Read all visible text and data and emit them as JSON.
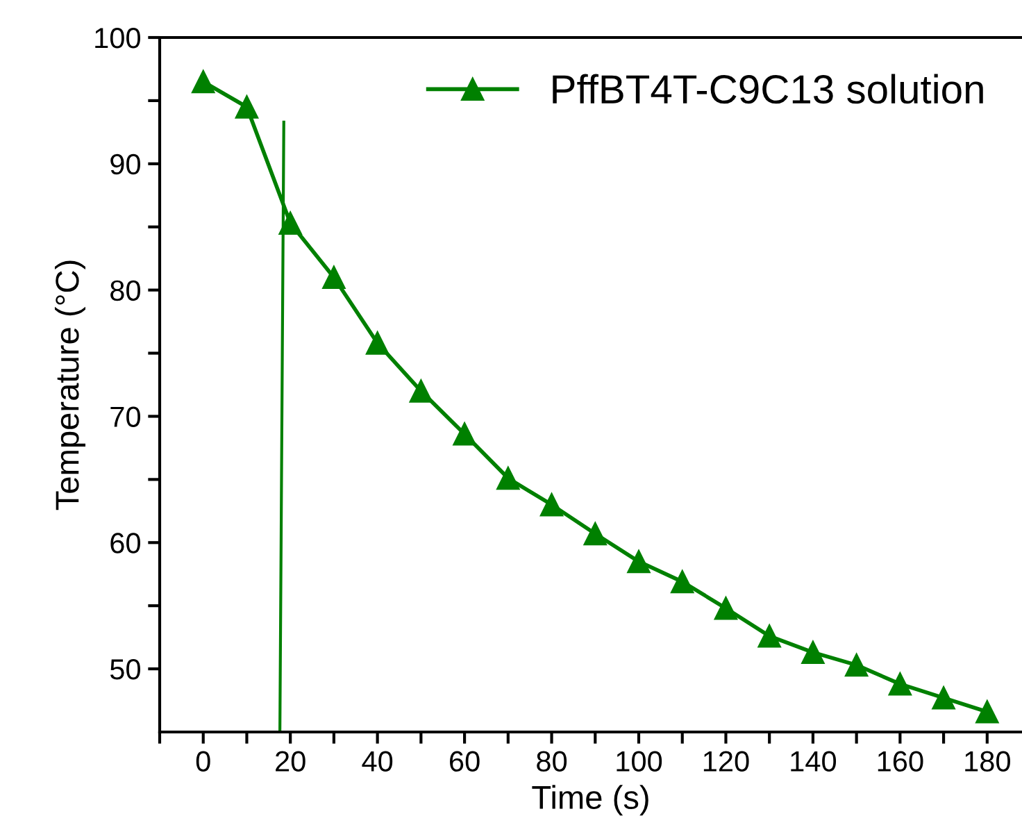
{
  "chart_data": {
    "type": "line",
    "xlabel": "Time (s)",
    "ylabel": "Temperature (°C)",
    "xlim": [
      -10,
      188
    ],
    "ylim": [
      45,
      100
    ],
    "xticks": [
      {
        "value": -10,
        "label": null
      },
      0,
      {
        "value": 10,
        "label": null
      },
      20,
      {
        "value": 30,
        "label": null
      },
      40,
      {
        "value": 50,
        "label": null
      },
      60,
      {
        "value": 70,
        "label": null
      },
      80,
      {
        "value": 90,
        "label": null
      },
      100,
      {
        "value": 110,
        "label": null
      },
      120,
      {
        "value": 130,
        "label": null
      },
      140,
      {
        "value": 150,
        "label": null
      },
      160,
      {
        "value": 170,
        "label": null
      },
      180
    ],
    "yticks": [
      50,
      {
        "value": 55,
        "label": null
      },
      60,
      {
        "value": 65,
        "label": null
      },
      70,
      {
        "value": 75,
        "label": null
      },
      80,
      {
        "value": 85,
        "label": null
      },
      90,
      {
        "value": 95,
        "label": null
      },
      100
    ],
    "grid": false,
    "legend": "top right",
    "series": [
      {
        "name": "PffBT4T-C9C13 solution",
        "color": "#008000",
        "marker": "triangle",
        "line_style": "solid",
        "x": [
          0,
          10,
          20,
          30,
          40,
          50,
          60,
          70,
          80,
          90,
          100,
          110,
          120,
          130,
          140,
          150,
          160,
          170,
          180
        ],
        "values": [
          96.5,
          94.5,
          85.3,
          81,
          75.8,
          72,
          68.6,
          65.1,
          63,
          60.7,
          58.5,
          56.9,
          54.8,
          52.6,
          51.3,
          50.3,
          48.8,
          47.7,
          46.6
        ]
      },
      {
        "color": "#008000",
        "marker": "none",
        "line_style": "solid",
        "x": [
          17.6,
          18.5
        ],
        "values": [
          45,
          93.3
        ]
      }
    ]
  }
}
